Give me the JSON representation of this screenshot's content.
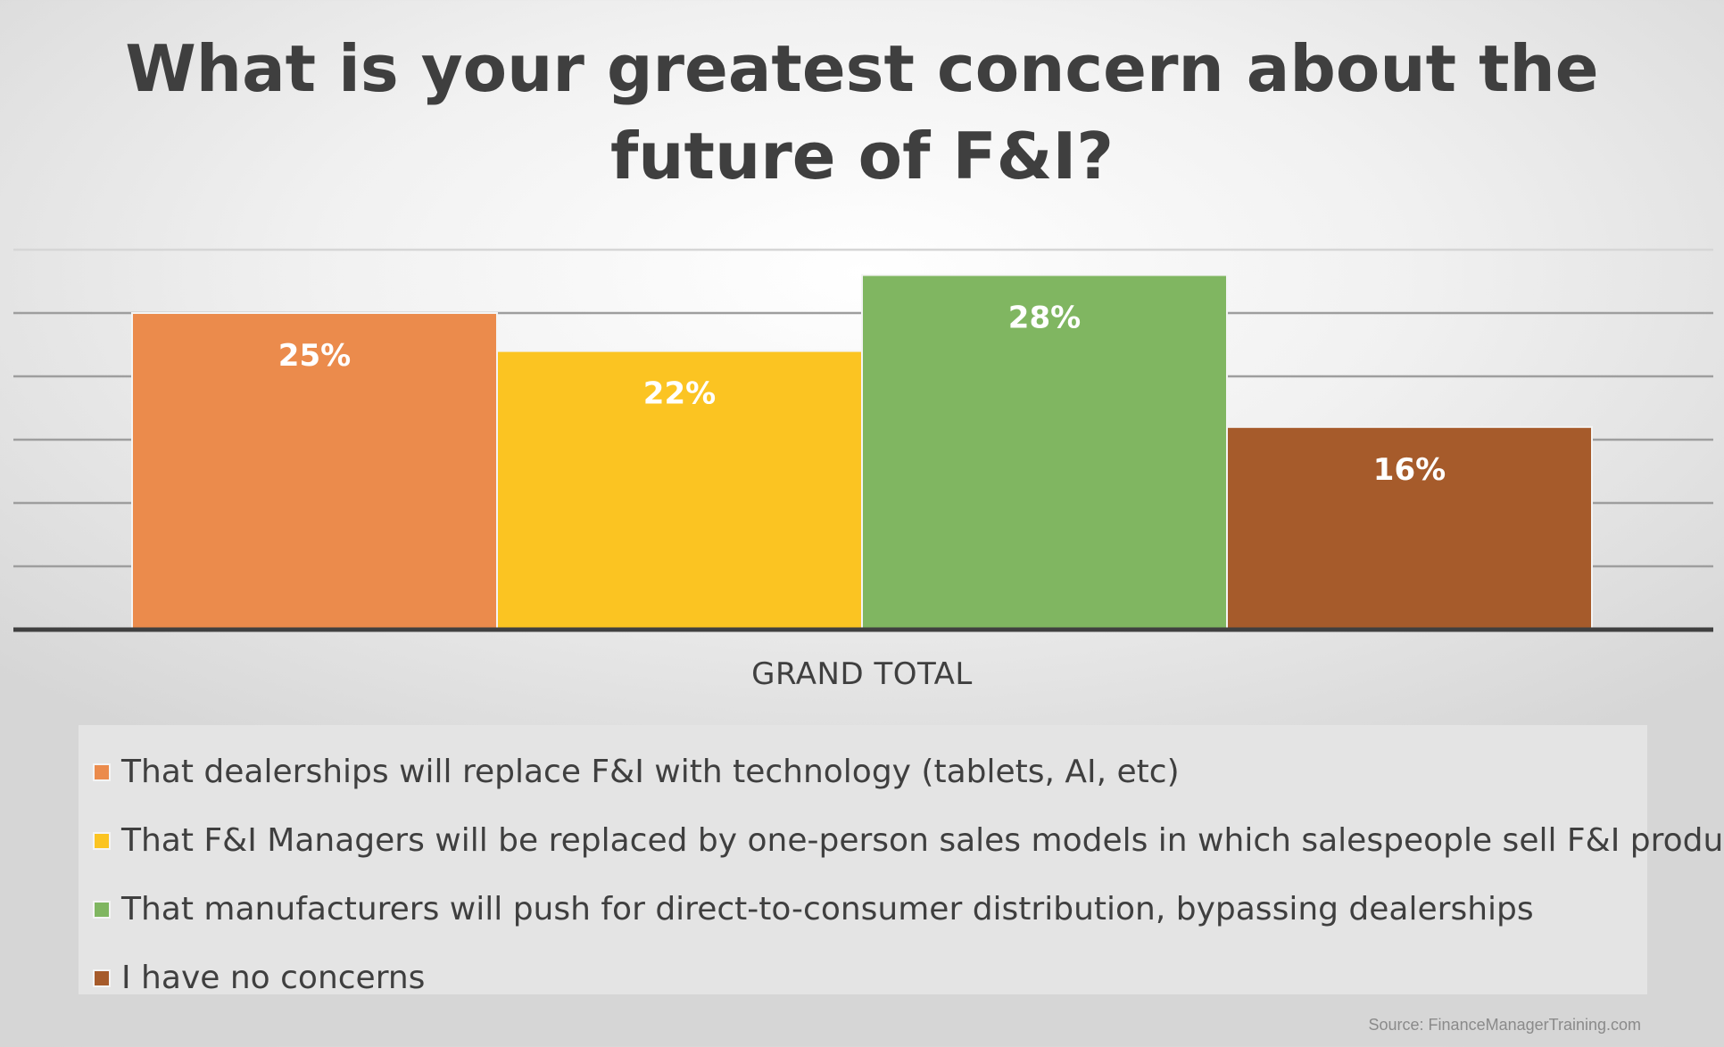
{
  "chart_data": {
    "type": "bar",
    "title": "What is your greatest concern about the future of F&I?",
    "title_lines": [
      "What is your greatest concern about the",
      "future of F&I?"
    ],
    "categories": [
      "GRAND TOTAL"
    ],
    "series": [
      {
        "name": "That dealerships will replace F&I with technology (tablets, AI, etc)",
        "values": [
          25
        ],
        "color": "#eb8b4c"
      },
      {
        "name": "That F&I Managers will be replaced by one-person sales models in which salespeople sell F&I products",
        "values": [
          22
        ],
        "color": "#fbc422"
      },
      {
        "name": "That manufacturers will push for direct-to-consumer distribution, bypassing dealerships",
        "values": [
          28
        ],
        "color": "#80b661"
      },
      {
        "name": "I have no concerns",
        "values": [
          16
        ],
        "color": "#a65b2b"
      }
    ],
    "data_labels": [
      "25%",
      "22%",
      "28%",
      "16%"
    ],
    "ylim": [
      0,
      30
    ],
    "y_gridline_step": 5,
    "grid": true,
    "axis_labels_visible": false,
    "legend": "bottom",
    "source": "Source: FinanceManagerTraining.com"
  }
}
